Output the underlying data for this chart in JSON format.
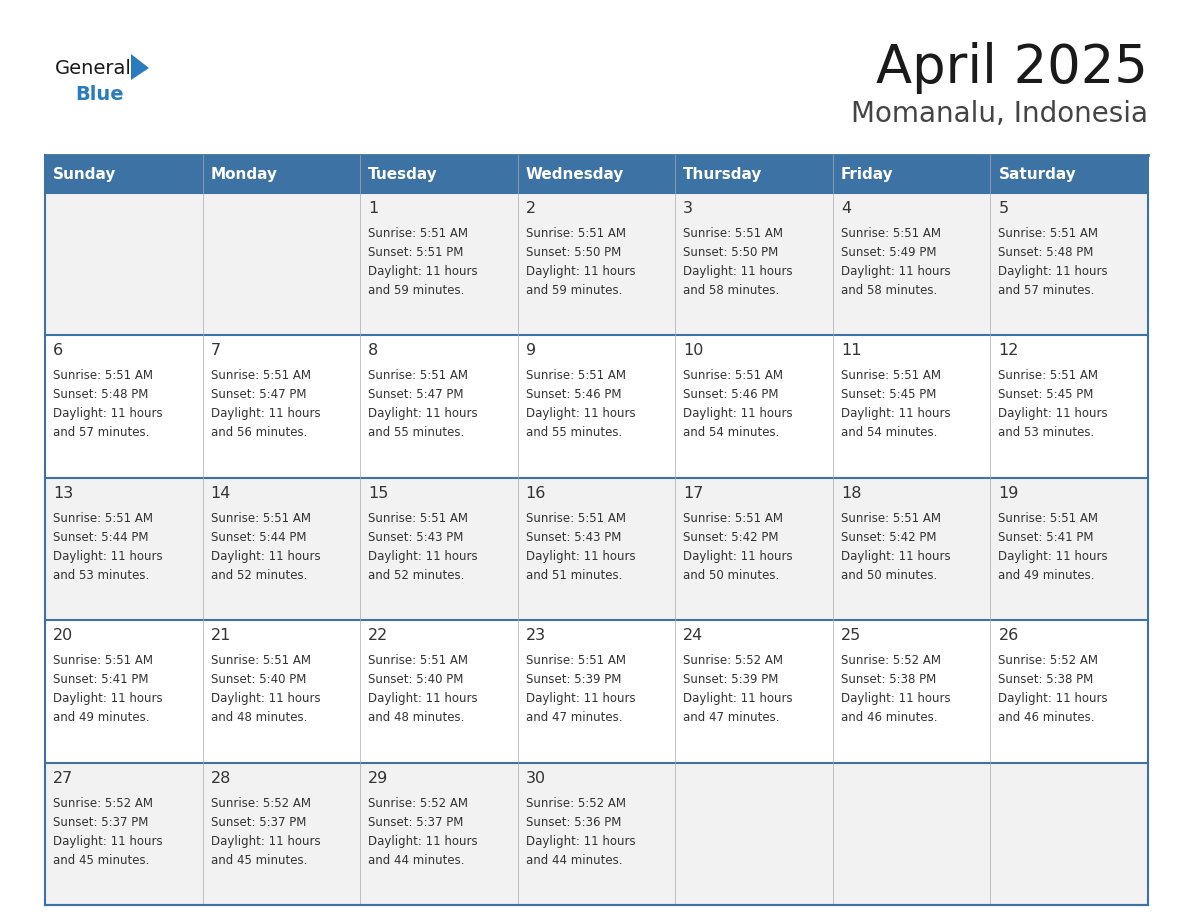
{
  "title": "April 2025",
  "subtitle": "Momanalu, Indonesia",
  "header_bg_color": "#3d72a4",
  "header_text_color": "#ffffff",
  "day_names": [
    "Sunday",
    "Monday",
    "Tuesday",
    "Wednesday",
    "Thursday",
    "Friday",
    "Saturday"
  ],
  "row_bg_colors": [
    "#f2f2f2",
    "#ffffff",
    "#f2f2f2",
    "#ffffff",
    "#f2f2f2"
  ],
  "border_color": "#3d72a4",
  "cell_border_color": "#cccccc",
  "text_color": "#333333",
  "title_color": "#1a1a1a",
  "subtitle_color": "#444444",
  "general_text_color": "#1a1a1a",
  "blue_color": "#2b7bbf",
  "calendar": [
    [
      null,
      null,
      {
        "day": 1,
        "sunrise": "5:51 AM",
        "sunset": "5:51 PM",
        "daylight": "11 hours and 59 minutes"
      },
      {
        "day": 2,
        "sunrise": "5:51 AM",
        "sunset": "5:50 PM",
        "daylight": "11 hours and 59 minutes"
      },
      {
        "day": 3,
        "sunrise": "5:51 AM",
        "sunset": "5:50 PM",
        "daylight": "11 hours and 58 minutes"
      },
      {
        "day": 4,
        "sunrise": "5:51 AM",
        "sunset": "5:49 PM",
        "daylight": "11 hours and 58 minutes"
      },
      {
        "day": 5,
        "sunrise": "5:51 AM",
        "sunset": "5:48 PM",
        "daylight": "11 hours and 57 minutes"
      }
    ],
    [
      {
        "day": 6,
        "sunrise": "5:51 AM",
        "sunset": "5:48 PM",
        "daylight": "11 hours and 57 minutes"
      },
      {
        "day": 7,
        "sunrise": "5:51 AM",
        "sunset": "5:47 PM",
        "daylight": "11 hours and 56 minutes"
      },
      {
        "day": 8,
        "sunrise": "5:51 AM",
        "sunset": "5:47 PM",
        "daylight": "11 hours and 55 minutes"
      },
      {
        "day": 9,
        "sunrise": "5:51 AM",
        "sunset": "5:46 PM",
        "daylight": "11 hours and 55 minutes"
      },
      {
        "day": 10,
        "sunrise": "5:51 AM",
        "sunset": "5:46 PM",
        "daylight": "11 hours and 54 minutes"
      },
      {
        "day": 11,
        "sunrise": "5:51 AM",
        "sunset": "5:45 PM",
        "daylight": "11 hours and 54 minutes"
      },
      {
        "day": 12,
        "sunrise": "5:51 AM",
        "sunset": "5:45 PM",
        "daylight": "11 hours and 53 minutes"
      }
    ],
    [
      {
        "day": 13,
        "sunrise": "5:51 AM",
        "sunset": "5:44 PM",
        "daylight": "11 hours and 53 minutes"
      },
      {
        "day": 14,
        "sunrise": "5:51 AM",
        "sunset": "5:44 PM",
        "daylight": "11 hours and 52 minutes"
      },
      {
        "day": 15,
        "sunrise": "5:51 AM",
        "sunset": "5:43 PM",
        "daylight": "11 hours and 52 minutes"
      },
      {
        "day": 16,
        "sunrise": "5:51 AM",
        "sunset": "5:43 PM",
        "daylight": "11 hours and 51 minutes"
      },
      {
        "day": 17,
        "sunrise": "5:51 AM",
        "sunset": "5:42 PM",
        "daylight": "11 hours and 50 minutes"
      },
      {
        "day": 18,
        "sunrise": "5:51 AM",
        "sunset": "5:42 PM",
        "daylight": "11 hours and 50 minutes"
      },
      {
        "day": 19,
        "sunrise": "5:51 AM",
        "sunset": "5:41 PM",
        "daylight": "11 hours and 49 minutes"
      }
    ],
    [
      {
        "day": 20,
        "sunrise": "5:51 AM",
        "sunset": "5:41 PM",
        "daylight": "11 hours and 49 minutes"
      },
      {
        "day": 21,
        "sunrise": "5:51 AM",
        "sunset": "5:40 PM",
        "daylight": "11 hours and 48 minutes"
      },
      {
        "day": 22,
        "sunrise": "5:51 AM",
        "sunset": "5:40 PM",
        "daylight": "11 hours and 48 minutes"
      },
      {
        "day": 23,
        "sunrise": "5:51 AM",
        "sunset": "5:39 PM",
        "daylight": "11 hours and 47 minutes"
      },
      {
        "day": 24,
        "sunrise": "5:52 AM",
        "sunset": "5:39 PM",
        "daylight": "11 hours and 47 minutes"
      },
      {
        "day": 25,
        "sunrise": "5:52 AM",
        "sunset": "5:38 PM",
        "daylight": "11 hours and 46 minutes"
      },
      {
        "day": 26,
        "sunrise": "5:52 AM",
        "sunset": "5:38 PM",
        "daylight": "11 hours and 46 minutes"
      }
    ],
    [
      {
        "day": 27,
        "sunrise": "5:52 AM",
        "sunset": "5:37 PM",
        "daylight": "11 hours and 45 minutes"
      },
      {
        "day": 28,
        "sunrise": "5:52 AM",
        "sunset": "5:37 PM",
        "daylight": "11 hours and 45 minutes"
      },
      {
        "day": 29,
        "sunrise": "5:52 AM",
        "sunset": "5:37 PM",
        "daylight": "11 hours and 44 minutes"
      },
      {
        "day": 30,
        "sunrise": "5:52 AM",
        "sunset": "5:36 PM",
        "daylight": "11 hours and 44 minutes"
      },
      null,
      null,
      null
    ]
  ]
}
